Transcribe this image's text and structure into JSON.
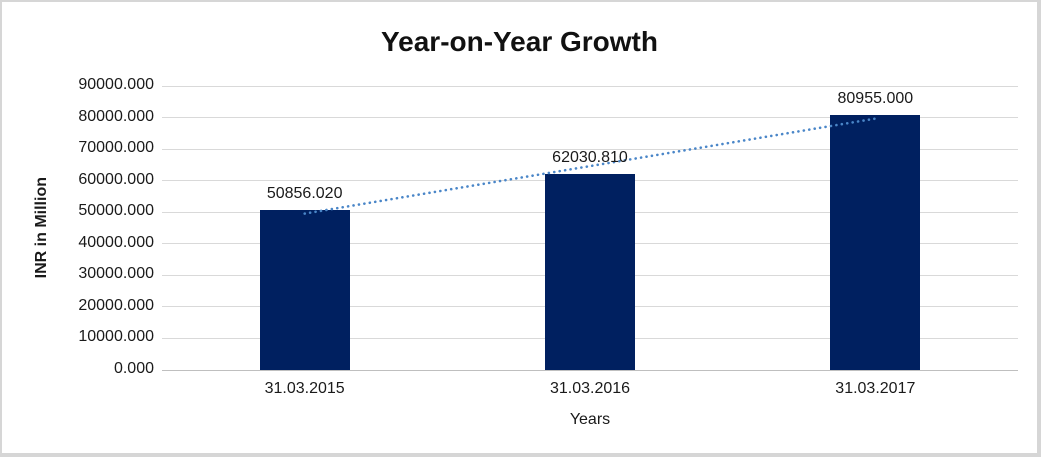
{
  "window": {
    "background_color": "#ffffff",
    "border_color": "#d6d6d6"
  },
  "chart_data": {
    "type": "bar",
    "title": "Year-on-Year Growth",
    "xlabel": "Years",
    "ylabel": "INR in Million",
    "categories": [
      "31.03.2015",
      "31.03.2016",
      "31.03.2017"
    ],
    "values": [
      50856.02,
      62030.81,
      80955.0
    ],
    "data_labels": [
      "50856.020",
      "62030.810",
      "80955.000"
    ],
    "ylim": [
      0,
      90000
    ],
    "ytick_step": 10000,
    "ytick_labels": [
      "0.000",
      "10000.000",
      "20000.000",
      "30000.000",
      "40000.000",
      "50000.000",
      "60000.000",
      "70000.000",
      "80000.000",
      "90000.000"
    ],
    "grid": true,
    "legend_position": "none",
    "bar_color": "#002060",
    "gridline_color": "#d9d9d9",
    "baseline_color": "#bfbfbf",
    "text_color": "#1a1a1a",
    "trendline": {
      "type": "linear",
      "style": "dotted",
      "color": "#4a86c8"
    }
  }
}
